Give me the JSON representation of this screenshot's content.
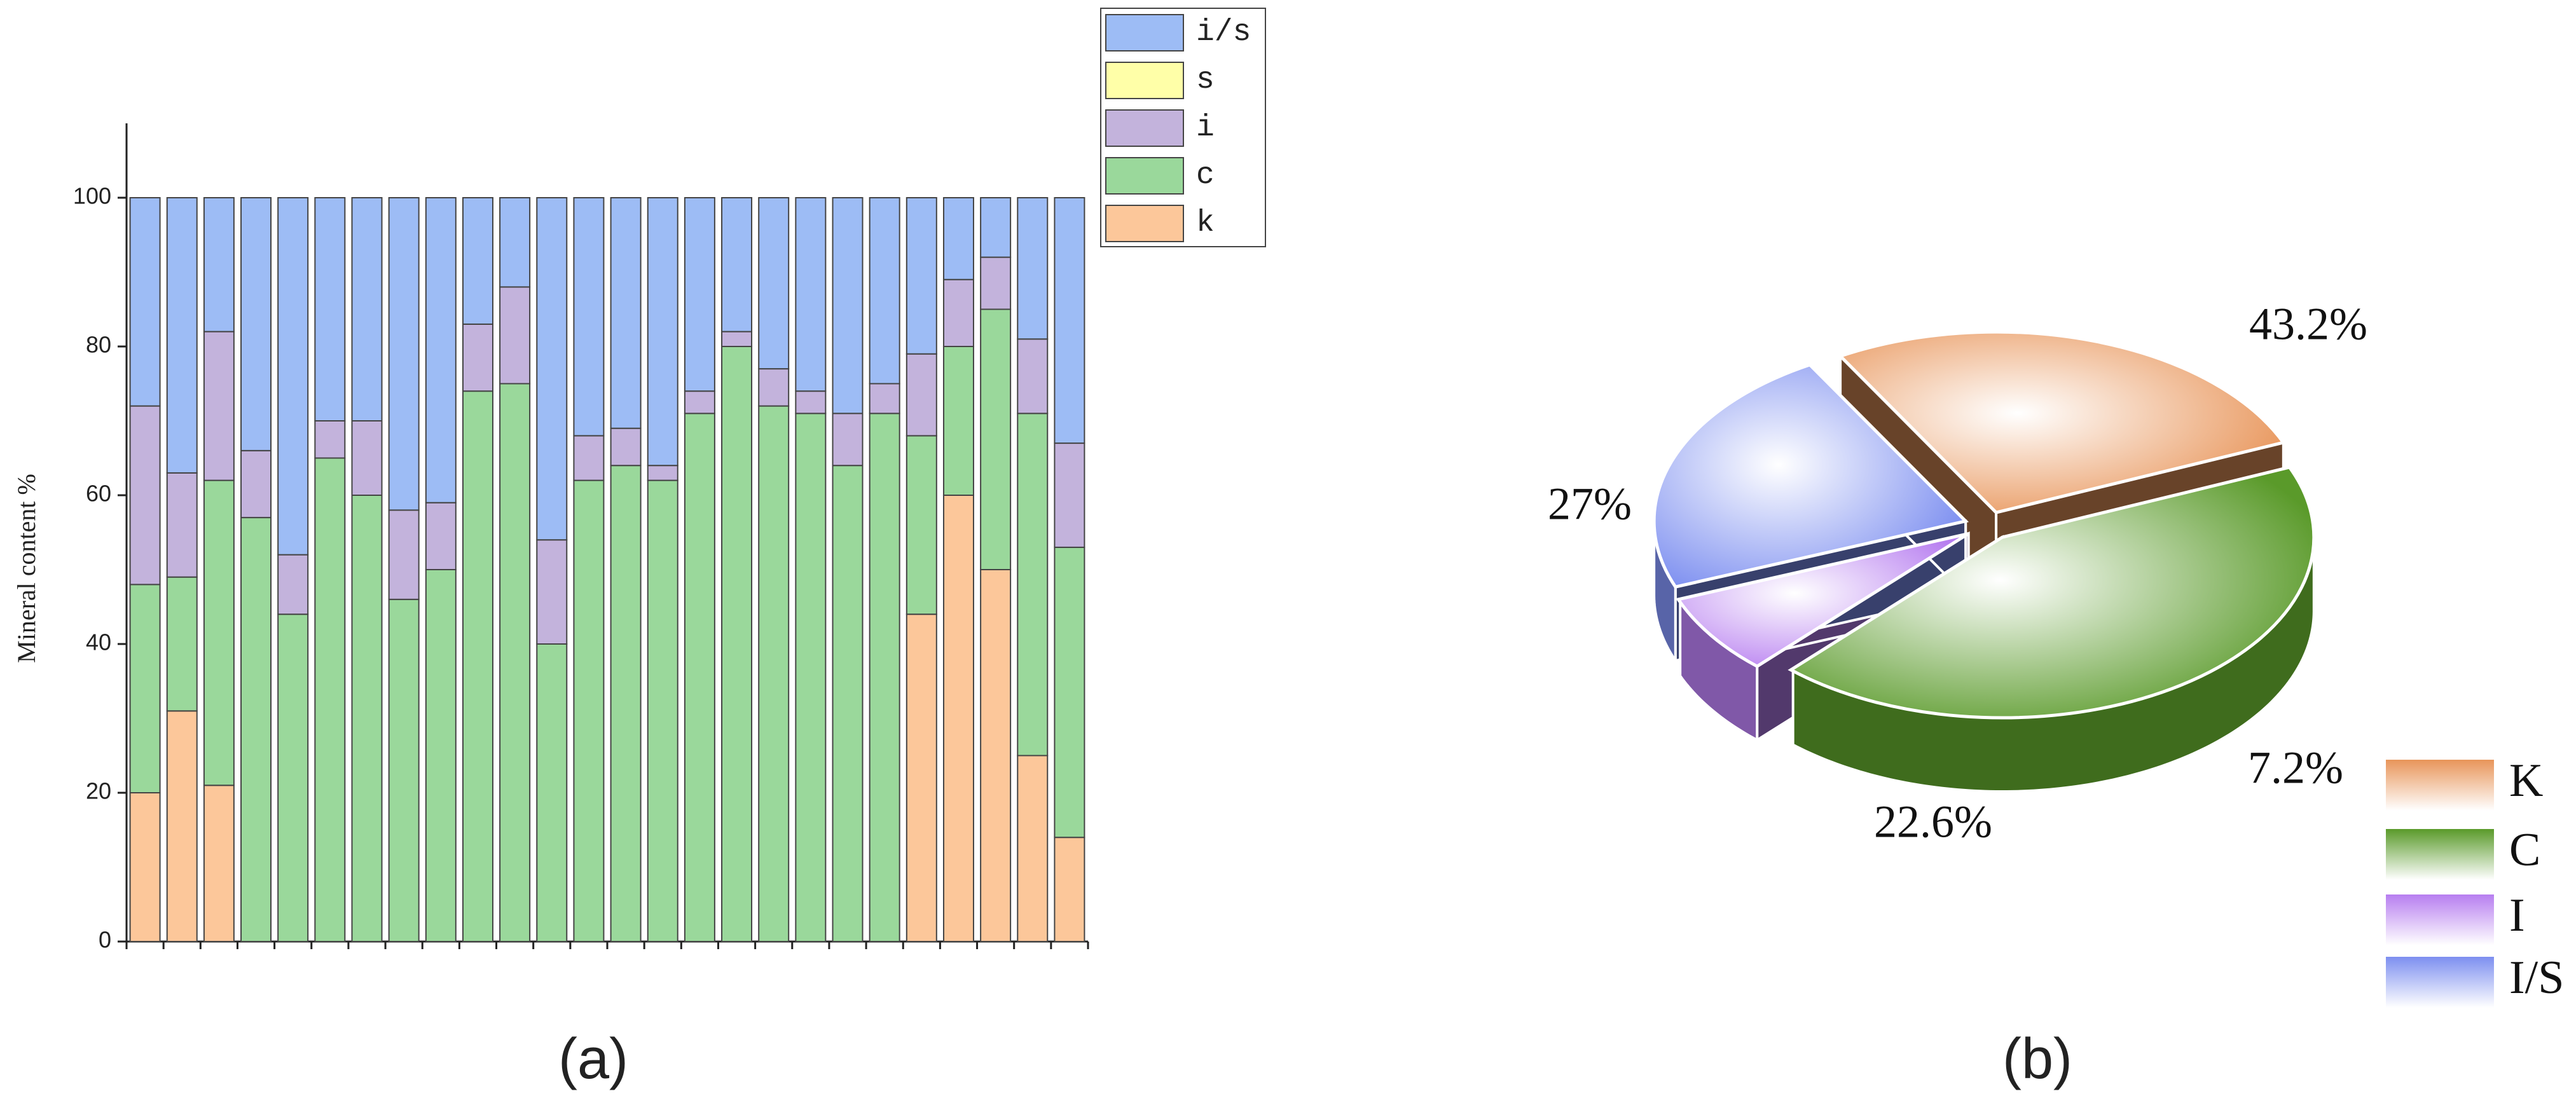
{
  "chart_data": [
    {
      "type": "bar",
      "stacked": true,
      "caption": "(a)",
      "y_label": "Mineral content %",
      "categories": [
        null,
        null,
        null,
        null,
        null,
        null,
        null,
        null,
        null,
        null,
        null,
        null,
        null,
        null,
        null,
        null,
        null,
        null,
        null,
        null,
        null,
        null,
        null,
        null,
        null,
        null
      ],
      "series": [
        {
          "name": "i/s",
          "color": "#9dbcf5",
          "values": [
            28,
            37,
            18,
            34,
            48,
            30,
            30,
            42,
            41,
            17,
            12,
            46,
            32,
            31,
            36,
            26,
            18,
            23,
            26,
            29,
            25,
            21,
            11,
            8,
            19,
            33
          ]
        },
        {
          "name": "s",
          "color": "#ffffa8",
          "values": [
            0,
            0,
            0,
            0,
            0,
            0,
            0,
            0,
            0,
            0,
            0,
            0,
            0,
            0,
            0,
            0,
            0,
            0,
            0,
            0,
            0,
            0,
            0,
            0,
            0,
            0
          ]
        },
        {
          "name": "i",
          "color": "#c3b3dc",
          "values": [
            24,
            14,
            20,
            9,
            8,
            5,
            10,
            12,
            9,
            9,
            13,
            14,
            6,
            5,
            2,
            3,
            2,
            5,
            3,
            7,
            4,
            11,
            9,
            7,
            10,
            14
          ]
        },
        {
          "name": "c",
          "color": "#9ad89b",
          "values": [
            28,
            18,
            41,
            57,
            44,
            65,
            60,
            46,
            50,
            74,
            75,
            40,
            62,
            64,
            62,
            71,
            80,
            72,
            71,
            64,
            71,
            24,
            20,
            35,
            46,
            39
          ]
        },
        {
          "name": "k",
          "color": "#fcc79a",
          "values": [
            20,
            31,
            21,
            0,
            0,
            0,
            0,
            0,
            0,
            0,
            0,
            0,
            0,
            0,
            0,
            0,
            0,
            0,
            0,
            0,
            0,
            44,
            60,
            50,
            25,
            14
          ]
        }
      ],
      "ylim": [
        0,
        110
      ],
      "yticks": [
        0,
        20,
        40,
        60,
        80,
        100
      ]
    },
    {
      "type": "pie",
      "caption": "(b)",
      "categories": [
        "K",
        "C",
        "I",
        "I/S"
      ],
      "values": [
        27,
        43.2,
        7.2,
        22.6
      ],
      "value_labels": [
        "27%",
        "43.2%",
        "7.2%",
        "22.6%"
      ],
      "colors": [
        "#e8955a",
        "#5a9a2a",
        "#b77ef0",
        "#7d8ff0"
      ]
    }
  ]
}
